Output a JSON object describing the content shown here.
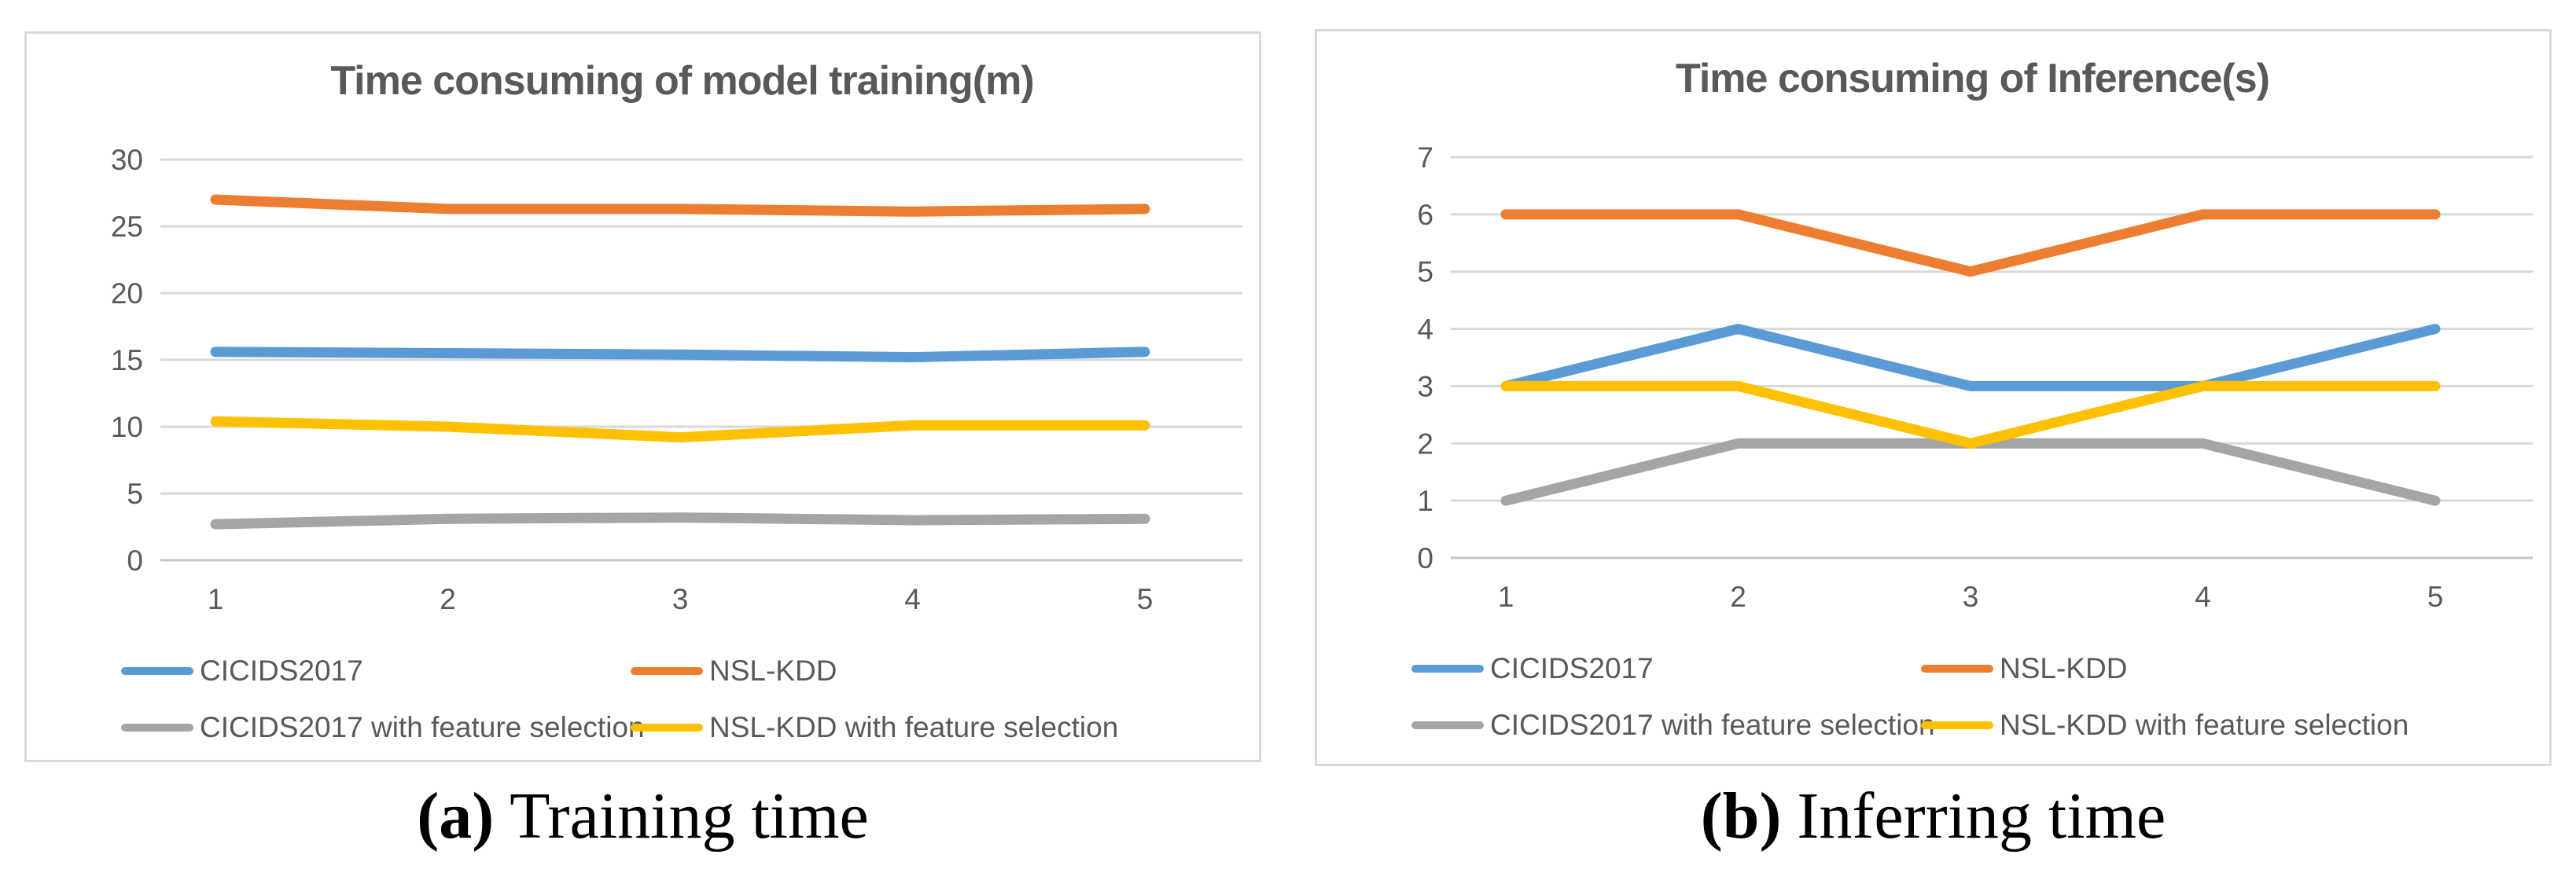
{
  "figure": {
    "captions": {
      "a": {
        "label": "(a)",
        "text": "Training time"
      },
      "b": {
        "label": "(b)",
        "text": "Inferring time"
      }
    }
  },
  "styles": {
    "grid_color": "#d9d9d9",
    "axis_line_color": "#c6c6c6",
    "axis_text_color": "#595959",
    "panel_border_color": "#d9d9d9"
  },
  "chart_data": [
    {
      "type": "line",
      "title": "Time consuming of model training(m)",
      "x": [
        1,
        2,
        3,
        4,
        5
      ],
      "xlabel": "",
      "ylabel": "",
      "ylim": [
        0,
        30
      ],
      "yticks": [
        0,
        5,
        10,
        15,
        20,
        25,
        30
      ],
      "grid": true,
      "legend_position": "bottom",
      "series": [
        {
          "name": "CICIDS2017",
          "color": "#5B9BD5",
          "values": [
            15.6,
            15.5,
            15.4,
            15.2,
            15.6
          ]
        },
        {
          "name": "NSL-KDD",
          "color": "#ED7D31",
          "values": [
            27,
            26.3,
            26.3,
            26.1,
            26.3
          ]
        },
        {
          "name": "CICIDS2017 with feature selection",
          "color": "#A5A5A5",
          "values": [
            2.7,
            3.1,
            3.2,
            3.0,
            3.1
          ]
        },
        {
          "name": "NSL-KDD with feature selection",
          "color": "#FFC000",
          "values": [
            10.4,
            10.0,
            9.2,
            10.1,
            10.1
          ]
        }
      ]
    },
    {
      "type": "line",
      "title": "Time consuming of Inference(s)",
      "x": [
        1,
        2,
        3,
        4,
        5
      ],
      "xlabel": "",
      "ylabel": "",
      "ylim": [
        0,
        7
      ],
      "yticks": [
        0,
        1,
        2,
        3,
        4,
        5,
        6,
        7
      ],
      "grid": true,
      "legend_position": "bottom",
      "series": [
        {
          "name": "CICIDS2017",
          "color": "#5B9BD5",
          "values": [
            3,
            4,
            3,
            3,
            4
          ]
        },
        {
          "name": "NSL-KDD",
          "color": "#ED7D31",
          "values": [
            6,
            6,
            5,
            6,
            6
          ]
        },
        {
          "name": "CICIDS2017 with feature selection",
          "color": "#A5A5A5",
          "values": [
            1,
            2,
            2,
            2,
            1
          ]
        },
        {
          "name": "NSL-KDD with feature selection",
          "color": "#FFC000",
          "values": [
            3,
            3,
            2,
            3,
            3
          ]
        }
      ]
    }
  ]
}
